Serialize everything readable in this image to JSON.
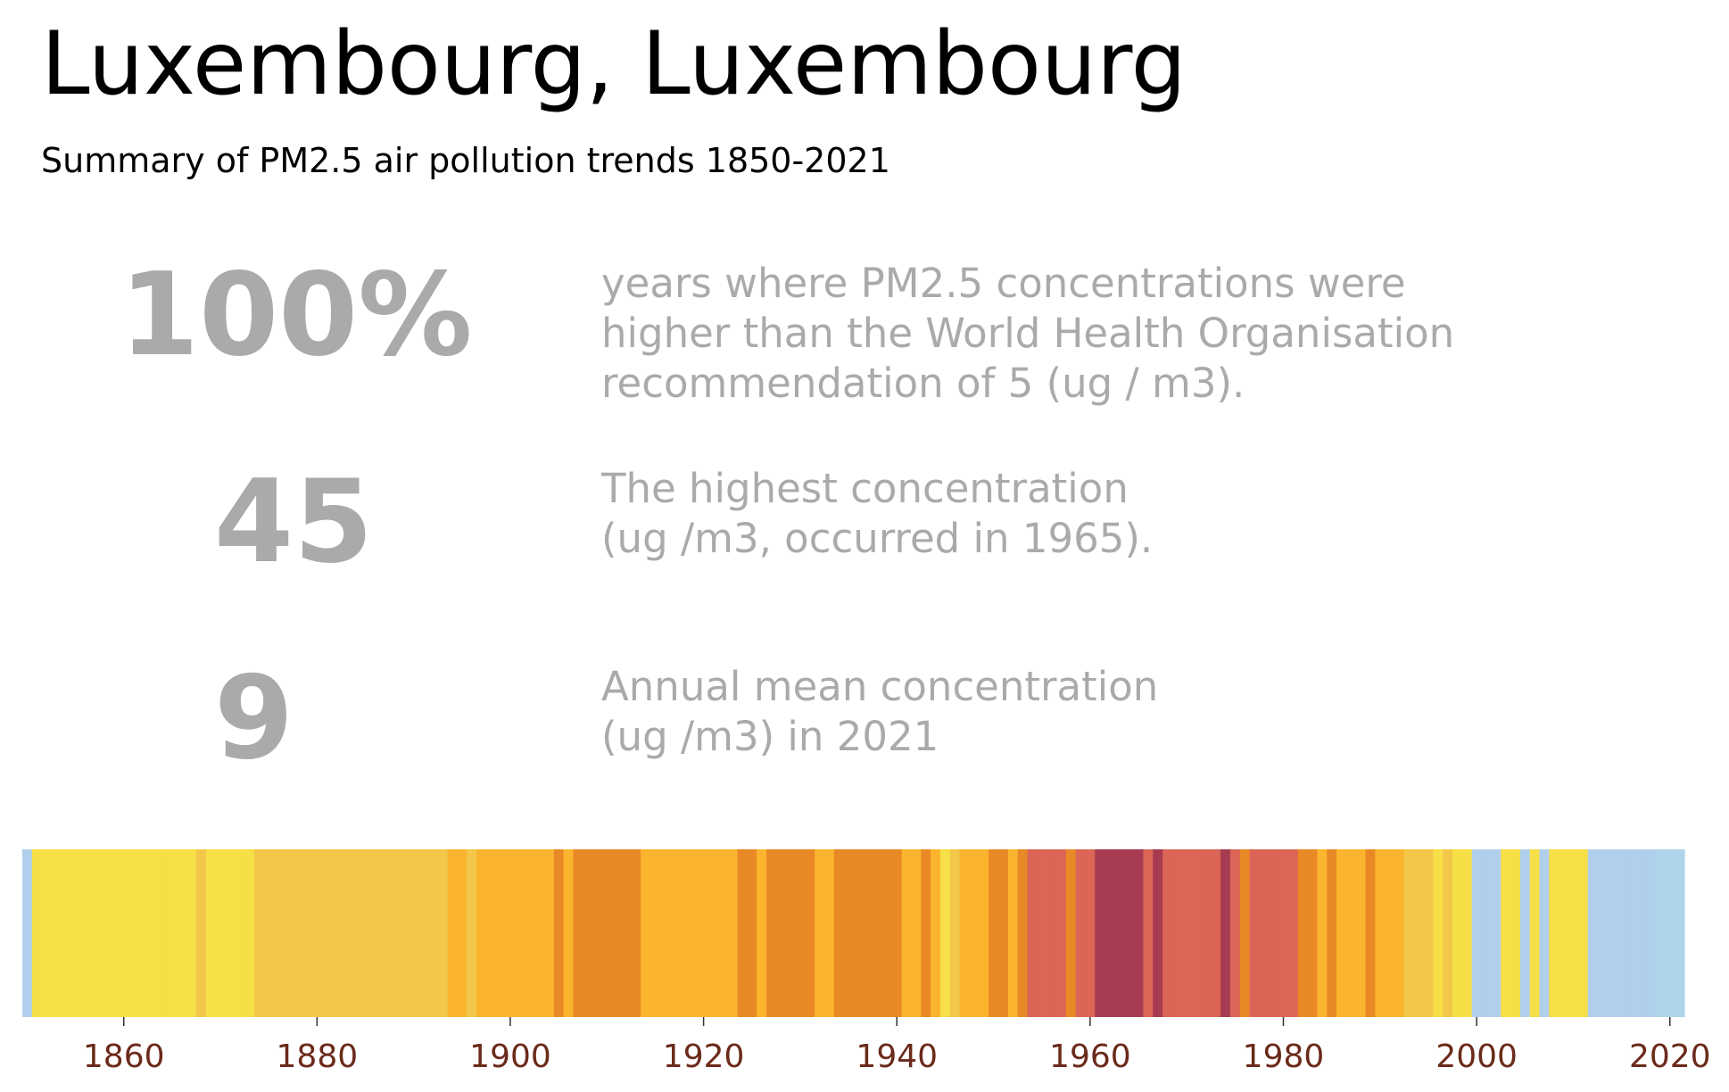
{
  "title": "Luxembourg, Luxembourg",
  "subtitle": "Summary of PM2.5 air pollution trends 1850-2021",
  "stats": [
    {
      "value": "100%",
      "lines": [
        "years where PM2.5 concentrations were",
        "higher than the World Health Organisation",
        "recommendation of 5 (ug / m3)."
      ]
    },
    {
      "value": "45",
      "lines": [
        "The highest concentration",
        "(ug /m3, occurred in 1965)."
      ]
    },
    {
      "value": "9",
      "lines": [
        "Annual mean concentration",
        "(ug /m3) in 2021"
      ]
    }
  ],
  "colors": {
    "very_low": "#aed4ec",
    "low": "#b0cfec",
    "moderate": "#f7df47",
    "moderate_high": "#f2c74a",
    "high": "#fbb42e",
    "higher": "#e98926",
    "very_high": "#db6556",
    "extreme": "#a63b52",
    "tick_label": "#6b2a1a"
  },
  "chart_data": {
    "type": "heatmap",
    "description_note": "",
    "x_start": 1850,
    "x_end": 2021,
    "xlim": [
      1849.5,
      2021.5
    ],
    "xticks": [
      1860,
      1880,
      1900,
      1920,
      1940,
      1960,
      1980,
      2000,
      2020
    ],
    "tick_labels": [
      "1860",
      "1880",
      "1900",
      "1920",
      "1940",
      "1960",
      "1980",
      "2000",
      "2020"
    ],
    "color_keys": [
      "low",
      "moderate",
      "moderate",
      "moderate",
      "moderate",
      "moderate",
      "moderate",
      "moderate",
      "moderate",
      "moderate",
      "moderate",
      "moderate",
      "moderate",
      "moderate",
      "moderate",
      "moderate",
      "moderate",
      "moderate",
      "moderate_high",
      "moderate",
      "moderate",
      "moderate",
      "moderate",
      "moderate",
      "moderate_high",
      "moderate_high",
      "moderate_high",
      "moderate_high",
      "moderate_high",
      "moderate_high",
      "moderate_high",
      "moderate_high",
      "moderate_high",
      "moderate_high",
      "moderate_high",
      "moderate_high",
      "moderate_high",
      "moderate_high",
      "moderate_high",
      "moderate_high",
      "moderate_high",
      "moderate_high",
      "moderate_high",
      "moderate_high",
      "high",
      "high",
      "moderate_high",
      "high",
      "high",
      "high",
      "high",
      "high",
      "high",
      "high",
      "high",
      "higher",
      "high",
      "higher",
      "higher",
      "higher",
      "higher",
      "higher",
      "higher",
      "higher",
      "high",
      "high",
      "high",
      "high",
      "high",
      "high",
      "high",
      "high",
      "high",
      "high",
      "higher",
      "higher",
      "high",
      "higher",
      "higher",
      "higher",
      "higher",
      "higher",
      "high",
      "high",
      "higher",
      "higher",
      "higher",
      "higher",
      "higher",
      "higher",
      "higher",
      "high",
      "high",
      "higher",
      "high",
      "moderate",
      "moderate_high",
      "high",
      "high",
      "high",
      "higher",
      "higher",
      "high",
      "higher",
      "very_high",
      "very_high",
      "very_high",
      "very_high",
      "higher",
      "very_high",
      "very_high",
      "extreme",
      "extreme",
      "extreme",
      "extreme",
      "extreme",
      "very_high",
      "extreme",
      "very_high",
      "very_high",
      "very_high",
      "very_high",
      "very_high",
      "very_high",
      "extreme",
      "very_high",
      "higher",
      "very_high",
      "very_high",
      "very_high",
      "very_high",
      "very_high",
      "higher",
      "higher",
      "high",
      "higher",
      "high",
      "high",
      "high",
      "higher",
      "high",
      "high",
      "high",
      "moderate_high",
      "moderate_high",
      "moderate_high",
      "moderate",
      "moderate_high",
      "moderate",
      "moderate",
      "low",
      "low",
      "low",
      "moderate",
      "moderate",
      "low",
      "moderate",
      "low",
      "moderate",
      "moderate",
      "moderate",
      "moderate",
      "low",
      "low",
      "low",
      "low",
      "low",
      "low",
      "low",
      "very_low",
      "very_low",
      "very_low"
    ]
  }
}
